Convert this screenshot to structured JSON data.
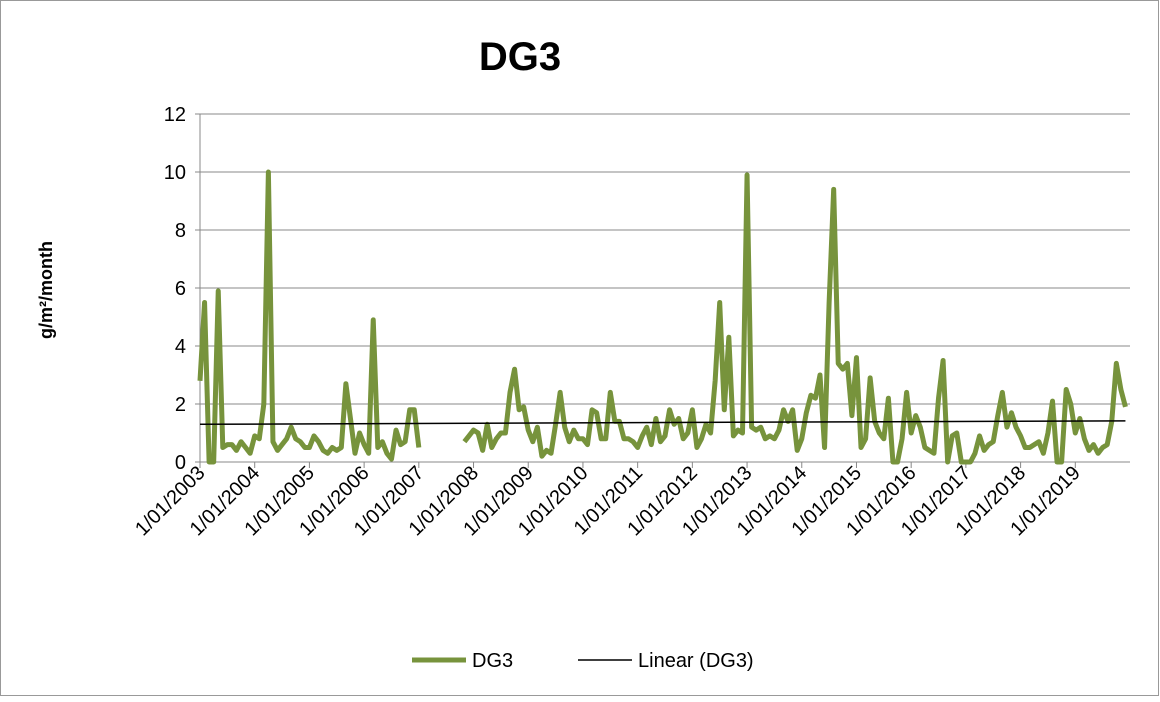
{
  "chart_data": {
    "type": "line",
    "title": "DG3",
    "y_label": "g/m²/month",
    "categories": [
      "1/01/2003",
      null,
      null,
      null,
      null,
      null,
      null,
      null,
      null,
      null,
      null,
      null,
      "1/01/2004",
      null,
      null,
      null,
      null,
      null,
      null,
      null,
      null,
      null,
      null,
      null,
      "1/01/2005",
      null,
      null,
      null,
      null,
      null,
      null,
      null,
      null,
      null,
      null,
      null,
      "1/01/2006",
      null,
      null,
      null,
      null,
      null,
      null,
      null,
      null,
      null,
      null,
      null,
      "1/01/2007",
      null,
      null,
      null,
      null,
      null,
      null,
      null,
      null,
      null,
      null,
      null,
      "1/01/2008",
      null,
      null,
      null,
      null,
      null,
      null,
      null,
      null,
      null,
      null,
      null,
      "1/01/2009",
      null,
      null,
      null,
      null,
      null,
      null,
      null,
      null,
      null,
      null,
      null,
      "1/01/2010",
      null,
      null,
      null,
      null,
      null,
      null,
      null,
      null,
      null,
      null,
      null,
      "1/01/2011",
      null,
      null,
      null,
      null,
      null,
      null,
      null,
      null,
      null,
      null,
      null,
      "1/01/2012",
      null,
      null,
      null,
      null,
      null,
      null,
      null,
      null,
      null,
      null,
      null,
      "1/01/2013",
      null,
      null,
      null,
      null,
      null,
      null,
      null,
      null,
      null,
      null,
      null,
      "1/01/2014",
      null,
      null,
      null,
      null,
      null,
      null,
      null,
      null,
      null,
      null,
      null,
      "1/01/2015",
      null,
      null,
      null,
      null,
      null,
      null,
      null,
      null,
      null,
      null,
      null,
      "1/01/2016",
      null,
      null,
      null,
      null,
      null,
      null,
      null,
      null,
      null,
      null,
      null,
      "1/01/2017",
      null,
      null,
      null,
      null,
      null,
      null,
      null,
      null,
      null,
      null,
      null,
      "1/01/2018",
      null,
      null,
      null,
      null,
      null,
      null,
      null,
      null,
      null,
      null,
      null,
      "1/01/2019",
      null,
      null,
      null,
      null,
      null,
      null,
      null,
      null,
      null,
      null,
      null
    ],
    "series": [
      {
        "name": "DG3",
        "color": "#77933c",
        "values": [
          2.8,
          5.5,
          0,
          0,
          5.9,
          0.5,
          0.6,
          0.6,
          0.4,
          0.7,
          0.5,
          0.3,
          0.9,
          0.8,
          2,
          10,
          0.7,
          0.4,
          0.6,
          0.8,
          1.2,
          0.8,
          0.7,
          0.5,
          0.5,
          0.9,
          0.7,
          0.4,
          0.3,
          0.5,
          0.4,
          0.5,
          2.7,
          1.5,
          0.3,
          1.0,
          0.6,
          0.3,
          4.9,
          0.5,
          0.7,
          0.3,
          0.1,
          1.1,
          0.6,
          0.7,
          1.8,
          1.8,
          0.5,
          null,
          null,
          null,
          null,
          null,
          null,
          null,
          null,
          null,
          0.7,
          0.9,
          1.1,
          1.0,
          0.4,
          1.3,
          0.5,
          0.8,
          1.0,
          1.0,
          2.4,
          3.2,
          1.8,
          1.9,
          1.1,
          0.7,
          1.2,
          0.2,
          0.4,
          0.3,
          1.3,
          2.4,
          1.2,
          0.7,
          1.1,
          0.8,
          0.8,
          0.6,
          1.8,
          1.7,
          0.8,
          0.8,
          2.4,
          1.4,
          1.4,
          0.8,
          0.8,
          0.7,
          0.5,
          0.9,
          1.2,
          0.6,
          1.5,
          0.7,
          0.9,
          1.8,
          1.3,
          1.5,
          0.8,
          1.0,
          1.8,
          0.5,
          0.8,
          1.3,
          1.0,
          2.8,
          5.5,
          1.8,
          4.3,
          0.9,
          1.1,
          1.0,
          9.9,
          1.2,
          1.1,
          1.2,
          0.8,
          0.9,
          0.8,
          1.1,
          1.8,
          1.4,
          1.8,
          0.4,
          0.8,
          1.7,
          2.3,
          2.2,
          3.0,
          0.5,
          5.5,
          9.4,
          3.4,
          3.2,
          3.4,
          1.6,
          3.6,
          0.5,
          0.8,
          2.9,
          1.4,
          1.0,
          0.8,
          2.2,
          0,
          0,
          0.8,
          2.4,
          1.0,
          1.6,
          1.2,
          0.5,
          0.4,
          0.3,
          2.2,
          3.5,
          0,
          0.9,
          1.0,
          0,
          0,
          0,
          0.3,
          0.9,
          0.4,
          0.6,
          0.7,
          1.6,
          2.4,
          1.2,
          1.7,
          1.2,
          0.9,
          0.5,
          0.5,
          0.6,
          0.7,
          0.3,
          1.0,
          2.1,
          0,
          0,
          2.5,
          2.0,
          1.0,
          1.5,
          0.8,
          0.4,
          0.6,
          0.3,
          0.5,
          0.6,
          1.4,
          3.4,
          2.5,
          1.9
        ]
      }
    ],
    "trendline": {
      "name": "Linear (DG3)",
      "color": "#000000",
      "values": [
        1.3,
        1.42
      ]
    },
    "ylim": [
      0,
      12
    ],
    "yticks": [
      0,
      2,
      4,
      6,
      8,
      10,
      12
    ],
    "grid": true,
    "legend": "bottom"
  }
}
